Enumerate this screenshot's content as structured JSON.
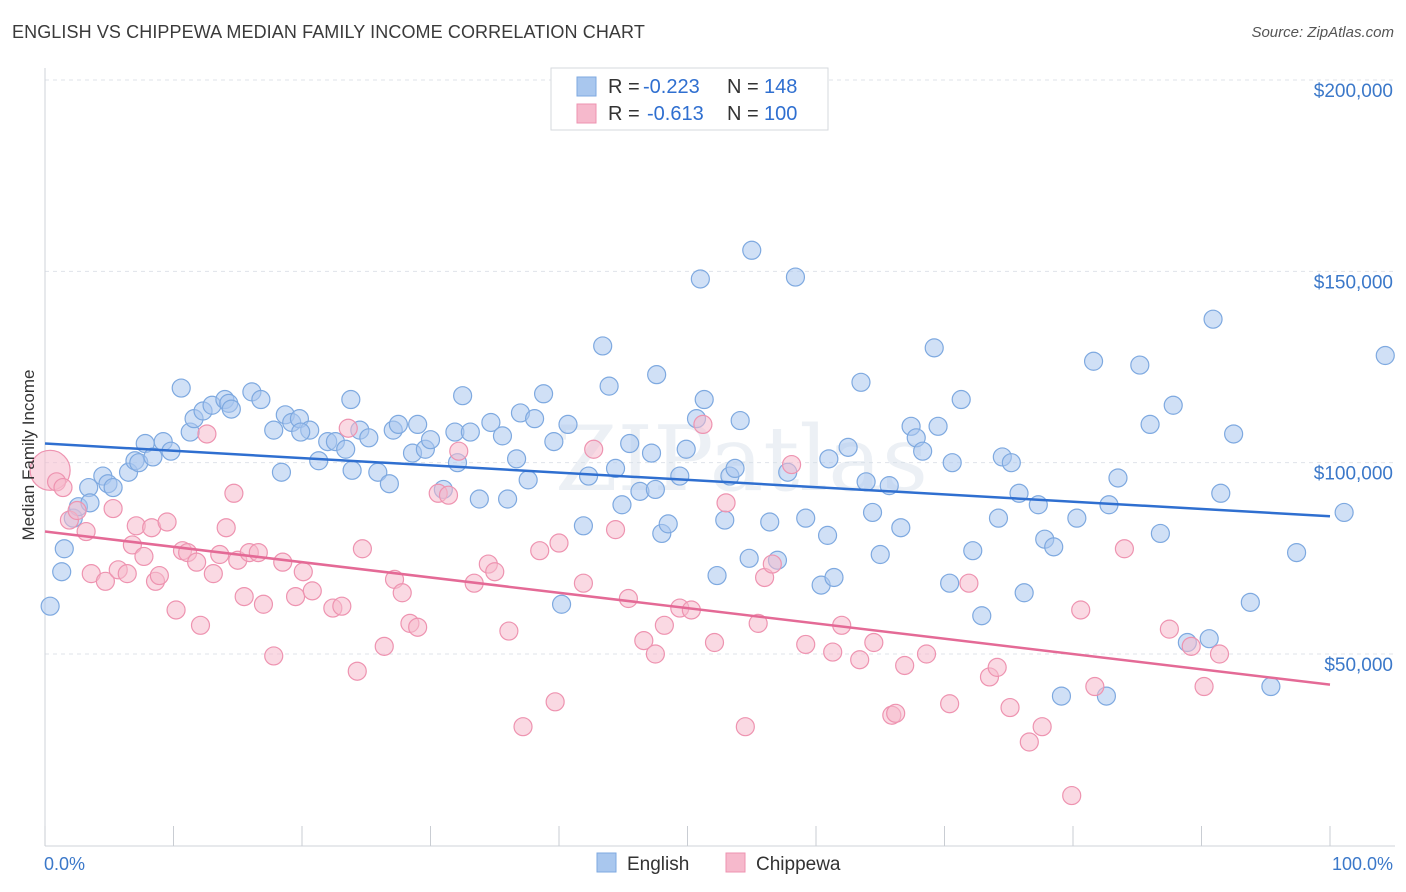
{
  "header": {
    "title": "ENGLISH VS CHIPPEWA MEDIAN FAMILY INCOME CORRELATION CHART",
    "source": "Source: ZipAtlas.com"
  },
  "legend_box": {
    "rows": [
      {
        "r_label": "R =",
        "r_value": "-0.223",
        "n_label": "N =",
        "n_value": "148"
      },
      {
        "r_label": "R =",
        "r_value": "-0.613",
        "n_label": "N =",
        "n_value": "100"
      }
    ]
  },
  "colors": {
    "english_fill": "#a9c7ee",
    "english_stroke": "#7ea9e0",
    "english_line": "#2f6fd0",
    "chippewa_fill": "#f6b9cc",
    "chippewa_stroke": "#ee93b0",
    "chippewa_line": "#e46a96",
    "grid": "#dfe3ea",
    "tick_label": "#3b78c9"
  },
  "watermark": "ZIPatlas",
  "chart_data": {
    "type": "scatter",
    "title": "ENGLISH VS CHIPPEWA MEDIAN FAMILY INCOME CORRELATION CHART",
    "xlabel": "",
    "ylabel": "Median Family Income",
    "xlim": [
      0,
      100
    ],
    "ylim": [
      10000,
      210000
    ],
    "x_tick_labels": [
      "0.0%",
      "100.0%"
    ],
    "y_ticks": [
      50000,
      100000,
      150000,
      200000
    ],
    "y_tick_labels": [
      "$50,000",
      "$100,000",
      "$150,000",
      "$200,000"
    ],
    "grid": true,
    "legend_position": "bottom-center",
    "series": [
      {
        "name": "English",
        "r": -0.223,
        "n": 148,
        "trend": {
          "x": [
            0,
            100
          ],
          "y": [
            105000,
            86000
          ]
        },
        "points": [
          [
            0.4,
            62500
          ],
          [
            1.3,
            71500
          ],
          [
            1.5,
            77500
          ],
          [
            2.2,
            85500
          ],
          [
            2.6,
            88500
          ],
          [
            3.4,
            93500
          ],
          [
            3.5,
            89500
          ],
          [
            4.5,
            96500
          ],
          [
            4.9,
            94500
          ],
          [
            5.3,
            93500
          ],
          [
            6.5,
            97500
          ],
          [
            7.0,
            100500
          ],
          [
            7.3,
            100000
          ],
          [
            7.8,
            105000
          ],
          [
            8.4,
            101500
          ],
          [
            9.2,
            105500
          ],
          [
            9.8,
            103000
          ],
          [
            11.3,
            108000
          ],
          [
            11.6,
            111500
          ],
          [
            12.3,
            113500
          ],
          [
            13.0,
            115000
          ],
          [
            14.0,
            116500
          ],
          [
            14.3,
            115500
          ],
          [
            16.1,
            118500
          ],
          [
            16.8,
            116500
          ],
          [
            17.8,
            108500
          ],
          [
            18.7,
            112500
          ],
          [
            19.2,
            110500
          ],
          [
            19.8,
            111500
          ],
          [
            20.6,
            108500
          ],
          [
            21.3,
            100500
          ],
          [
            22.0,
            105500
          ],
          [
            22.6,
            105500
          ],
          [
            23.4,
            103500
          ],
          [
            23.9,
            98000
          ],
          [
            24.5,
            108500
          ],
          [
            25.2,
            106500
          ],
          [
            25.9,
            97500
          ],
          [
            27.1,
            108500
          ],
          [
            27.5,
            110000
          ],
          [
            28.6,
            102500
          ],
          [
            29.6,
            103500
          ],
          [
            30.0,
            106000
          ],
          [
            31.0,
            93000
          ],
          [
            31.9,
            108000
          ],
          [
            32.5,
            117500
          ],
          [
            33.1,
            108000
          ],
          [
            33.8,
            90500
          ],
          [
            34.7,
            110500
          ],
          [
            35.6,
            107000
          ],
          [
            36.0,
            90500
          ],
          [
            37.0,
            113000
          ],
          [
            37.6,
            95500
          ],
          [
            38.1,
            111500
          ],
          [
            38.8,
            118000
          ],
          [
            39.6,
            105500
          ],
          [
            40.7,
            110000
          ],
          [
            41.9,
            83500
          ],
          [
            42.3,
            96500
          ],
          [
            43.4,
            130500
          ],
          [
            43.9,
            120000
          ],
          [
            44.4,
            98500
          ],
          [
            44.9,
            89000
          ],
          [
            45.5,
            105000
          ],
          [
            46.3,
            92500
          ],
          [
            47.2,
            102500
          ],
          [
            47.5,
            93000
          ],
          [
            48.0,
            81500
          ],
          [
            48.5,
            84000
          ],
          [
            49.4,
            96500
          ],
          [
            49.9,
            103500
          ],
          [
            50.7,
            111500
          ],
          [
            51.3,
            116500
          ],
          [
            52.3,
            70500
          ],
          [
            52.9,
            85000
          ],
          [
            53.3,
            96500
          ],
          [
            54.1,
            111000
          ],
          [
            54.8,
            75000
          ],
          [
            56.4,
            84500
          ],
          [
            57.0,
            74500
          ],
          [
            57.8,
            97500
          ],
          [
            59.2,
            85500
          ],
          [
            60.4,
            68000
          ],
          [
            60.9,
            81000
          ],
          [
            61.4,
            70000
          ],
          [
            62.5,
            104000
          ],
          [
            63.9,
            95000
          ],
          [
            64.4,
            87000
          ],
          [
            65.0,
            76000
          ],
          [
            65.7,
            94000
          ],
          [
            66.6,
            83000
          ],
          [
            67.4,
            109500
          ],
          [
            67.8,
            106500
          ],
          [
            69.2,
            130000
          ],
          [
            69.5,
            109500
          ],
          [
            70.4,
            68500
          ],
          [
            70.6,
            100000
          ],
          [
            72.2,
            77000
          ],
          [
            72.9,
            60000
          ],
          [
            74.2,
            85500
          ],
          [
            74.5,
            101500
          ],
          [
            75.2,
            100000
          ],
          [
            76.2,
            66000
          ],
          [
            77.3,
            89000
          ],
          [
            77.8,
            80000
          ],
          [
            78.5,
            78000
          ],
          [
            79.1,
            39000
          ],
          [
            80.3,
            85500
          ],
          [
            81.6,
            126500
          ],
          [
            82.6,
            39000
          ],
          [
            82.8,
            89000
          ],
          [
            85.2,
            125500
          ],
          [
            86.8,
            81500
          ],
          [
            87.8,
            115000
          ],
          [
            88.9,
            53000
          ],
          [
            90.6,
            54000
          ],
          [
            90.9,
            137500
          ],
          [
            91.5,
            92000
          ],
          [
            92.5,
            107500
          ],
          [
            93.8,
            63500
          ],
          [
            95.4,
            41500
          ],
          [
            97.4,
            76500
          ],
          [
            101.1,
            87000
          ],
          [
            104.3,
            128000
          ],
          [
            40.2,
            63000
          ],
          [
            51.0,
            148000
          ],
          [
            55.0,
            155500
          ],
          [
            58.4,
            148500
          ],
          [
            14.5,
            114000
          ],
          [
            19.9,
            108000
          ],
          [
            32.1,
            100000
          ],
          [
            26.8,
            94500
          ],
          [
            47.6,
            123000
          ],
          [
            63.5,
            121000
          ],
          [
            71.3,
            116500
          ],
          [
            29.0,
            110000
          ],
          [
            36.7,
            101000
          ],
          [
            53.7,
            98500
          ],
          [
            61.0,
            101000
          ],
          [
            68.3,
            103000
          ],
          [
            75.8,
            92000
          ],
          [
            83.5,
            96000
          ],
          [
            86.0,
            110000
          ],
          [
            10.6,
            119500
          ],
          [
            18.4,
            97500
          ],
          [
            23.8,
            116500
          ]
        ]
      },
      {
        "name": "Chippewa",
        "r": -0.613,
        "n": 100,
        "trend": {
          "x": [
            0,
            100
          ],
          "y": [
            82000,
            42000
          ]
        },
        "points": [
          [
            0.4,
            98000
          ],
          [
            0.9,
            95000
          ],
          [
            1.4,
            93500
          ],
          [
            1.9,
            85000
          ],
          [
            2.5,
            87500
          ],
          [
            3.2,
            82000
          ],
          [
            3.6,
            71000
          ],
          [
            4.7,
            69000
          ],
          [
            5.3,
            88000
          ],
          [
            5.7,
            72000
          ],
          [
            6.4,
            71000
          ],
          [
            6.8,
            78500
          ],
          [
            7.1,
            83500
          ],
          [
            7.7,
            75500
          ],
          [
            8.3,
            83000
          ],
          [
            8.6,
            69000
          ],
          [
            8.9,
            70500
          ],
          [
            9.5,
            84500
          ],
          [
            10.2,
            61500
          ],
          [
            10.7,
            77000
          ],
          [
            11.1,
            76500
          ],
          [
            11.8,
            74000
          ],
          [
            12.1,
            57500
          ],
          [
            12.6,
            107500
          ],
          [
            13.1,
            71000
          ],
          [
            13.6,
            76000
          ],
          [
            14.1,
            83000
          ],
          [
            14.7,
            92000
          ],
          [
            15.0,
            74500
          ],
          [
            15.5,
            65000
          ],
          [
            15.9,
            76500
          ],
          [
            16.6,
            76500
          ],
          [
            17.0,
            63000
          ],
          [
            17.8,
            49500
          ],
          [
            18.5,
            74000
          ],
          [
            19.5,
            65000
          ],
          [
            20.1,
            71500
          ],
          [
            20.8,
            66500
          ],
          [
            22.4,
            62000
          ],
          [
            23.1,
            62500
          ],
          [
            23.6,
            109000
          ],
          [
            24.3,
            45500
          ],
          [
            24.7,
            77500
          ],
          [
            26.4,
            52000
          ],
          [
            27.2,
            69500
          ],
          [
            27.8,
            66000
          ],
          [
            28.4,
            58000
          ],
          [
            29.0,
            57000
          ],
          [
            30.6,
            92000
          ],
          [
            31.4,
            91500
          ],
          [
            32.2,
            103000
          ],
          [
            33.4,
            68500
          ],
          [
            34.5,
            73500
          ],
          [
            35.0,
            71500
          ],
          [
            36.1,
            56000
          ],
          [
            37.2,
            31000
          ],
          [
            38.5,
            77000
          ],
          [
            39.7,
            37500
          ],
          [
            40.0,
            79000
          ],
          [
            41.9,
            68500
          ],
          [
            42.7,
            103500
          ],
          [
            44.4,
            82500
          ],
          [
            45.4,
            64500
          ],
          [
            46.6,
            53500
          ],
          [
            47.5,
            50000
          ],
          [
            48.2,
            57500
          ],
          [
            49.4,
            62000
          ],
          [
            50.3,
            61500
          ],
          [
            51.2,
            110000
          ],
          [
            52.1,
            53000
          ],
          [
            53.0,
            89500
          ],
          [
            54.5,
            31000
          ],
          [
            55.5,
            58000
          ],
          [
            56.0,
            70000
          ],
          [
            56.6,
            73500
          ],
          [
            58.1,
            99500
          ],
          [
            59.2,
            52500
          ],
          [
            61.3,
            50500
          ],
          [
            62.0,
            57500
          ],
          [
            63.4,
            48500
          ],
          [
            64.5,
            53000
          ],
          [
            65.9,
            34000
          ],
          [
            66.2,
            34500
          ],
          [
            66.9,
            47000
          ],
          [
            68.6,
            50000
          ],
          [
            70.4,
            37000
          ],
          [
            71.9,
            68500
          ],
          [
            73.5,
            44000
          ],
          [
            74.1,
            46500
          ],
          [
            75.1,
            36000
          ],
          [
            76.6,
            27000
          ],
          [
            77.6,
            31000
          ],
          [
            79.9,
            13000
          ],
          [
            80.6,
            61500
          ],
          [
            81.7,
            41500
          ],
          [
            84.0,
            77500
          ],
          [
            87.5,
            56500
          ],
          [
            89.2,
            52000
          ],
          [
            90.2,
            41500
          ],
          [
            91.4,
            50000
          ]
        ]
      }
    ]
  }
}
